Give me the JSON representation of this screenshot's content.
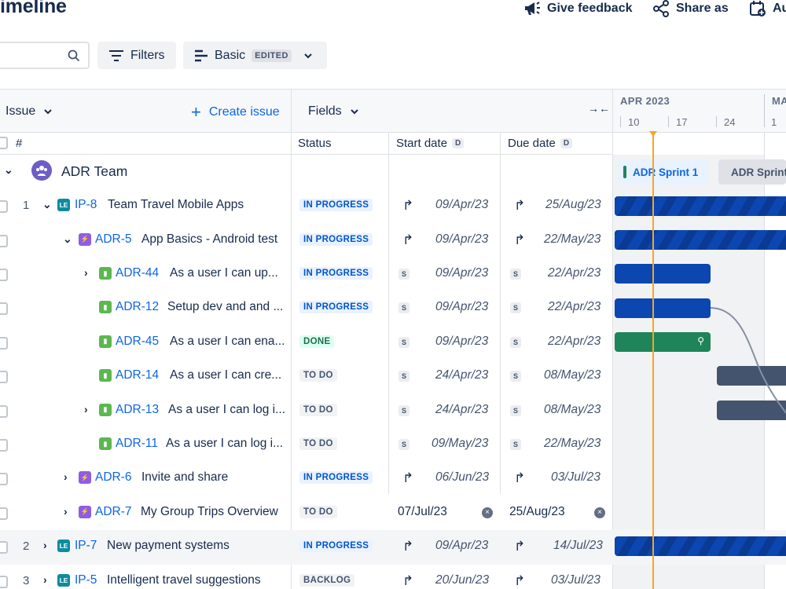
{
  "header": {
    "title": "imeline",
    "give_feedback": "Give feedback",
    "share_as": "Share as",
    "auto": "Au"
  },
  "toolbar": {
    "search_placeholder": "",
    "filters_label": "Filters",
    "view_label": "Basic",
    "view_badge": "EDITED"
  },
  "grid": {
    "issue_header": "Issue",
    "create_issue": "Create issue",
    "fields_header": "Fields",
    "hash": "#",
    "col_status": "Status",
    "col_start": "Start date",
    "col_due": "Due date",
    "date_badge": "D"
  },
  "timeline": {
    "month1": "APR 2023",
    "month2": "MA",
    "days": [
      "10",
      "17",
      "24",
      "1"
    ],
    "sprint1": "ADR Sprint 1",
    "sprint2": "ADR Sprint"
  },
  "team": {
    "name": "ADR Team"
  },
  "rows": [
    {
      "num": "1",
      "key": "IP-8",
      "summary": "Team Travel Mobile Apps",
      "status": "IN PROGRESS",
      "start": "09/Apr/23",
      "due": "25/Aug/23",
      "sched": "S"
    },
    {
      "num": "",
      "key": "ADR-5",
      "summary": "App Basics - Android test",
      "status": "IN PROGRESS",
      "start": "09/Apr/23",
      "due": "22/May/23",
      "sched": "S"
    },
    {
      "num": "",
      "key": "ADR-44",
      "summary": "As a user I can up...",
      "status": "IN PROGRESS",
      "start": "09/Apr/23",
      "due": "22/Apr/23",
      "sched": "S"
    },
    {
      "num": "",
      "key": "ADR-12",
      "summary": "Setup dev and and ...",
      "status": "IN PROGRESS",
      "start": "09/Apr/23",
      "due": "22/Apr/23",
      "sched": "S"
    },
    {
      "num": "",
      "key": "ADR-45",
      "summary": "As a user I can ena...",
      "status": "DONE",
      "start": "09/Apr/23",
      "due": "22/Apr/23",
      "sched": "S"
    },
    {
      "num": "",
      "key": "ADR-14",
      "summary": "As a user I can cre...",
      "status": "TO DO",
      "start": "24/Apr/23",
      "due": "08/May/23",
      "sched": "S"
    },
    {
      "num": "",
      "key": "ADR-13",
      "summary": "As a user I can log i...",
      "status": "TO DO",
      "start": "24/Apr/23",
      "due": "08/May/23",
      "sched": "S"
    },
    {
      "num": "",
      "key": "ADR-11",
      "summary": "As a user I can log i...",
      "status": "TO DO",
      "start": "09/May/23",
      "due": "22/May/23",
      "sched": "S"
    },
    {
      "num": "",
      "key": "ADR-6",
      "summary": "Invite and share",
      "status": "IN PROGRESS",
      "start": "06/Jun/23",
      "due": "03/Jul/23",
      "sched": "S"
    },
    {
      "num": "",
      "key": "ADR-7",
      "summary": "My Group Trips Overview",
      "status": "TO DO",
      "start": "07/Jul/23",
      "due": "25/Aug/23",
      "sched": "S"
    },
    {
      "num": "2",
      "key": "IP-7",
      "summary": "New payment systems",
      "status": "IN PROGRESS",
      "start": "09/Apr/23",
      "due": "14/Jul/23",
      "sched": "S"
    },
    {
      "num": "3",
      "key": "IP-5",
      "summary": "Intelligent travel suggestions",
      "status": "BACKLOG",
      "start": "20/Jun/23",
      "due": "03/Jul/23",
      "sched": "S"
    }
  ],
  "colors": {
    "accent": "#0c66e4",
    "today": "#f5a623",
    "bar_blue": "#0c46b0",
    "bar_green": "#1f845a",
    "bar_gray": "#44546f"
  }
}
